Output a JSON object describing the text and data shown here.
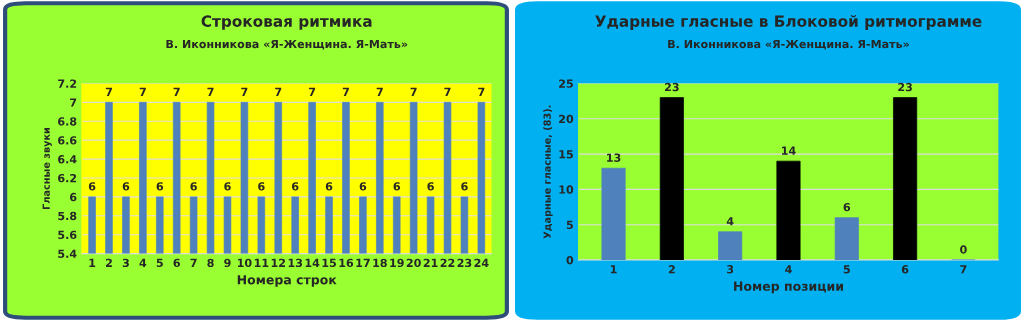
{
  "chart_data": [
    {
      "type": "bar",
      "title": "Строковая ритмика",
      "subtitle": "В. Иконникова «Я-Женщина. Я-Мать»",
      "xlabel": "Номера строк",
      "ylabel": "Гласные звуки",
      "categories": [
        "1",
        "2",
        "3",
        "4",
        "5",
        "6",
        "7",
        "8",
        "9",
        "10",
        "11",
        "12",
        "13",
        "14",
        "15",
        "16",
        "17",
        "18",
        "19",
        "20",
        "21",
        "22",
        "23",
        "24"
      ],
      "values": [
        6,
        7,
        6,
        7,
        6,
        7,
        6,
        7,
        6,
        7,
        6,
        7,
        6,
        7,
        6,
        7,
        6,
        7,
        6,
        7,
        6,
        7,
        6,
        7
      ],
      "color": "#4f81bd",
      "ylim": [
        5.4,
        7.2
      ],
      "yticks": [
        5.4,
        5.6,
        5.8,
        6,
        6.2,
        6.4,
        6.6,
        6.8,
        7,
        7.2
      ],
      "grid": "y",
      "data_labels": true
    },
    {
      "type": "bar",
      "title": "Ударные гласные в Блоковой ритмограмме",
      "subtitle": "В. Иконникова «Я-Женщина. Я-Мать»",
      "xlabel": "Номер позиции",
      "ylabel": "Ударные гласные, (83).",
      "categories": [
        "1",
        "2",
        "3",
        "4",
        "5",
        "6",
        "7"
      ],
      "values": [
        13,
        23,
        4,
        14,
        6,
        23,
        0
      ],
      "colors": [
        "#4f81bd",
        "#000000",
        "#4f81bd",
        "#000000",
        "#4f81bd",
        "#000000",
        "#4f81bd"
      ],
      "ylim": [
        0,
        25
      ],
      "yticks": [
        0,
        5,
        10,
        15,
        20,
        25
      ],
      "grid": "y",
      "data_labels": true
    }
  ]
}
